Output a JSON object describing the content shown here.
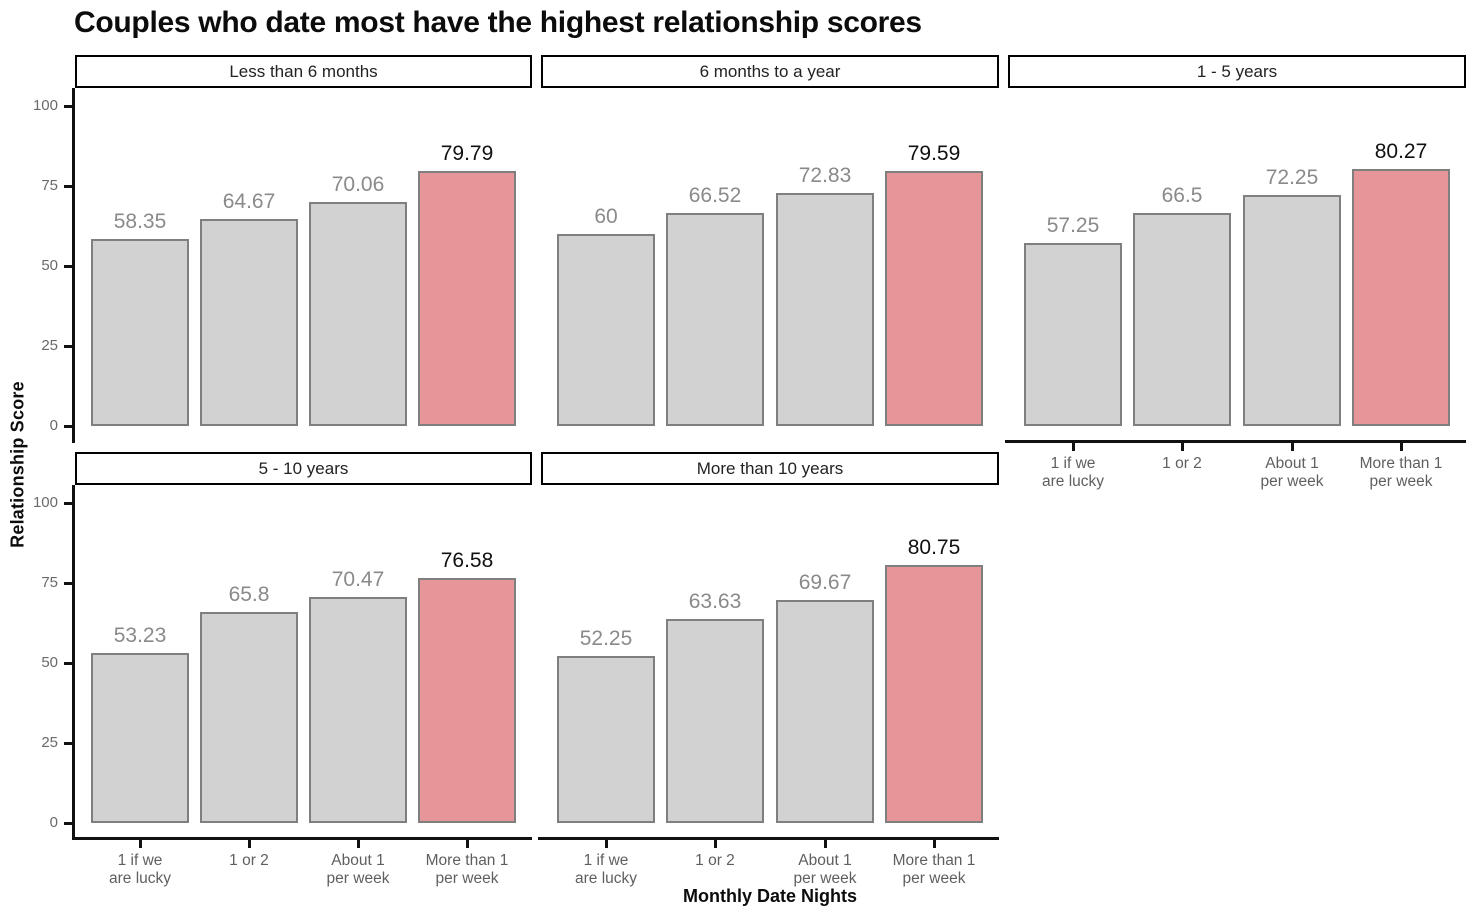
{
  "title": "Couples who date most have the highest relationship scores",
  "axes": {
    "y_title": "Relationship Score",
    "x_title": "Monthly Date Nights",
    "y_ticks": [
      0,
      25,
      50,
      75,
      100
    ]
  },
  "colors": {
    "bar_fill": "#d2d2d2",
    "bar_border": "#7f7f7f",
    "highlight_fill": "#e69598",
    "value_label_gray": "#8a8a8a",
    "value_label_highlight": "#111111",
    "axis_text": "#5f5f5f",
    "axis_line": "#111111",
    "header_border": "#000000",
    "background": "#ffffff"
  },
  "chart_data": {
    "type": "bar",
    "title": "Couples who date most have the highest relationship scores",
    "xlabel": "Monthly Date Nights",
    "ylabel": "Relationship Score",
    "ylim": [
      0,
      100
    ],
    "grid": false,
    "legend": "none",
    "categories": [
      "1 if we\nare lucky",
      "1 or 2",
      "About 1\nper week",
      "More than 1\nper week"
    ],
    "facets": [
      {
        "label": "Less than 6 months",
        "values": [
          58.35,
          64.67,
          70.06,
          79.79
        ],
        "highlight_index": 3
      },
      {
        "label": "6 months to a year",
        "values": [
          60,
          66.52,
          72.83,
          79.59
        ],
        "highlight_index": 3
      },
      {
        "label": "1 - 5 years",
        "values": [
          57.25,
          66.5,
          72.25,
          80.27
        ],
        "highlight_index": 3
      },
      {
        "label": "5 - 10 years",
        "values": [
          53.23,
          65.8,
          70.47,
          76.58
        ],
        "highlight_index": 3
      },
      {
        "label": "More than 10 years",
        "values": [
          52.25,
          63.63,
          69.67,
          80.75
        ],
        "highlight_index": 3
      }
    ]
  }
}
